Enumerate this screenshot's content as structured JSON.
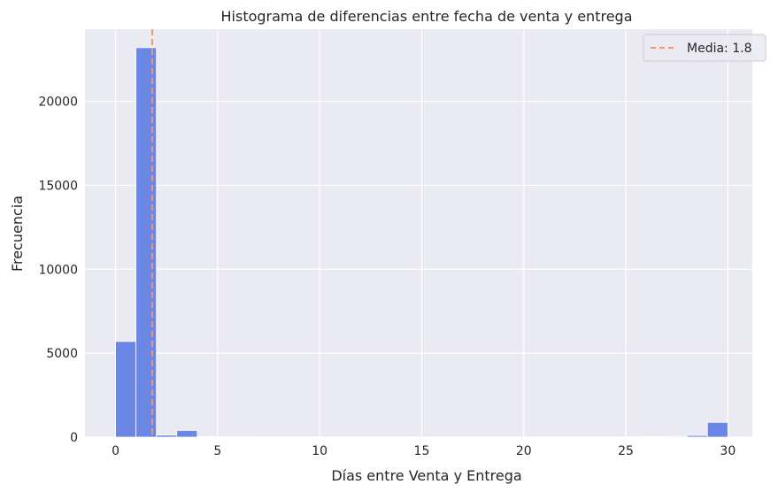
{
  "chart_data": {
    "type": "bar",
    "title": "Histograma de diferencias entre fecha de venta y entrega",
    "xlabel": "Días entre Venta y Entrega",
    "ylabel": "Frecuencia",
    "xlim": [
      -1.5,
      31.2
    ],
    "ylim": [
      0,
      24300
    ],
    "xticks": [
      0,
      5,
      10,
      15,
      20,
      25,
      30
    ],
    "yticks": [
      0,
      5000,
      10000,
      15000,
      20000
    ],
    "bin_width": 1,
    "bins": [
      {
        "start": 0,
        "value": 5700
      },
      {
        "start": 1,
        "value": 23200
      },
      {
        "start": 2,
        "value": 120
      },
      {
        "start": 3,
        "value": 400
      },
      {
        "start": 4,
        "value": 30
      },
      {
        "start": 5,
        "value": 10
      },
      {
        "start": 6,
        "value": 8
      },
      {
        "start": 7,
        "value": 5
      },
      {
        "start": 8,
        "value": 5
      },
      {
        "start": 9,
        "value": 4
      },
      {
        "start": 10,
        "value": 4
      },
      {
        "start": 11,
        "value": 3
      },
      {
        "start": 12,
        "value": 3
      },
      {
        "start": 13,
        "value": 3
      },
      {
        "start": 14,
        "value": 3
      },
      {
        "start": 15,
        "value": 3
      },
      {
        "start": 16,
        "value": 3
      },
      {
        "start": 17,
        "value": 3
      },
      {
        "start": 18,
        "value": 3
      },
      {
        "start": 19,
        "value": 3
      },
      {
        "start": 20,
        "value": 3
      },
      {
        "start": 21,
        "value": 3
      },
      {
        "start": 22,
        "value": 3
      },
      {
        "start": 23,
        "value": 3
      },
      {
        "start": 24,
        "value": 5
      },
      {
        "start": 25,
        "value": 15
      },
      {
        "start": 26,
        "value": 25
      },
      {
        "start": 27,
        "value": 45
      },
      {
        "start": 28,
        "value": 100
      },
      {
        "start": 29,
        "value": 880
      }
    ],
    "mean": 1.8,
    "mean_label": "Media: 1.8",
    "grid": true,
    "legend_position": "top-right",
    "colors": {
      "bar": "#6a87e6",
      "bar_edge": "#ffffff",
      "mean_line": "#f4956d",
      "background": "#eaeaf2",
      "grid": "#ffffff"
    }
  }
}
